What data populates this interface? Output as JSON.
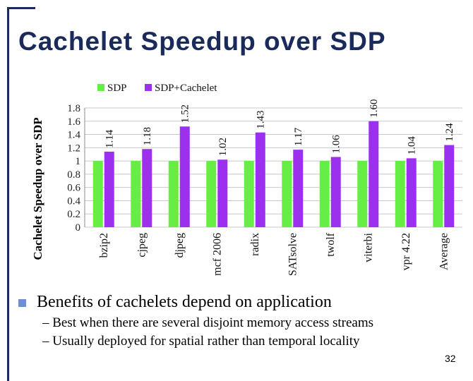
{
  "slide": {
    "title": "Cachelet Speedup over SDP",
    "bullet": "Benefits of cachelets depend on application",
    "sub_bullets": [
      "– Best when there are several disjoint memory access streams",
      "– Usually deployed for spatial rather than temporal locality"
    ],
    "page_number": "32"
  },
  "chart_data": {
    "type": "bar",
    "categories": [
      "bzip2",
      "cjpeg",
      "djpeg",
      "mcf 2006",
      "radix",
      "SATsolve",
      "twolf",
      "viterbi",
      "vpr 4.22",
      "Average"
    ],
    "series": [
      {
        "name": "SDP",
        "color": "#66ee44",
        "values": [
          1,
          1,
          1,
          1,
          1,
          1,
          1,
          1,
          1,
          1
        ]
      },
      {
        "name": "SDP+Cachelet",
        "color": "#9b30ee",
        "values": [
          1.14,
          1.18,
          1.52,
          1.02,
          1.43,
          1.17,
          1.06,
          1.6,
          1.04,
          1.24
        ]
      }
    ],
    "data_labels": [
      "1.14",
      "1.18",
      "1.52",
      "1.02",
      "1.43",
      "1.17",
      "1.06",
      "1.60",
      "1.04",
      "1.24"
    ],
    "ylabel": "Cachelet Speedup over SDP",
    "ylim": [
      0,
      1.8
    ],
    "yticks": [
      "0",
      "0.2",
      "0.4",
      "0.6",
      "0.8",
      "1",
      "1.2",
      "1.4",
      "1.6",
      "1.8"
    ],
    "grid": true,
    "legend_position": "top"
  }
}
